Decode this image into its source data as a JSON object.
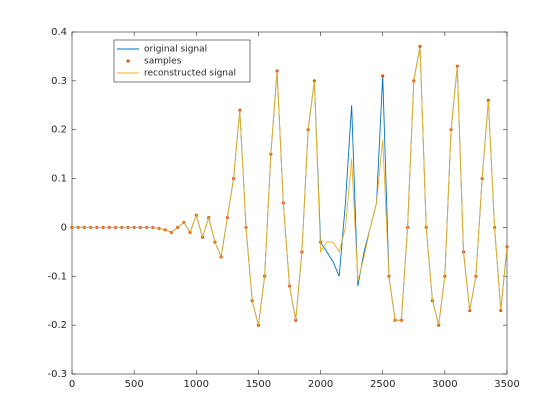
{
  "chart_data": {
    "type": "line",
    "x": [
      0,
      50,
      100,
      150,
      200,
      250,
      300,
      350,
      400,
      450,
      500,
      550,
      600,
      650,
      700,
      750,
      800,
      850,
      900,
      950,
      1000,
      1050,
      1100,
      1150,
      1200,
      1250,
      1300,
      1350,
      1400,
      1450,
      1500,
      1550,
      1600,
      1650,
      1700,
      1750,
      1800,
      1850,
      1900,
      1950,
      2000,
      2050,
      2100,
      2150,
      2200,
      2250,
      2300,
      2350,
      2400,
      2450,
      2500,
      2550,
      2600,
      2650,
      2700,
      2750,
      2800,
      2850,
      2900,
      2950,
      3000,
      3050,
      3100,
      3150,
      3200,
      3250,
      3300,
      3350,
      3400,
      3450,
      3500
    ],
    "series": [
      {
        "name": "original signal",
        "color": "#0072bd",
        "style": "line",
        "values": [
          0,
          0,
          0,
          0,
          0,
          0,
          0,
          0,
          0,
          0,
          0,
          0,
          0,
          0,
          -0.002,
          -0.005,
          -0.01,
          0.0,
          0.01,
          -0.01,
          0.025,
          -0.02,
          0.02,
          -0.03,
          -0.06,
          0.02,
          0.1,
          0.24,
          0.0,
          -0.15,
          -0.2,
          -0.1,
          0.15,
          0.32,
          0.05,
          -0.12,
          -0.19,
          -0.05,
          0.2,
          0.3,
          -0.03,
          -0.05,
          -0.07,
          -0.1,
          0.05,
          0.25,
          -0.12,
          -0.05,
          0.0,
          0.05,
          0.31,
          -0.1,
          -0.19,
          -0.19,
          0.0,
          0.3,
          0.37,
          0.0,
          -0.15,
          -0.2,
          -0.1,
          0.2,
          0.33,
          -0.05,
          -0.17,
          -0.1,
          0.1,
          0.26,
          0.0,
          -0.17,
          -0.04
        ]
      },
      {
        "name": "samples",
        "color": "#d95319",
        "style": "markers",
        "values": [
          0,
          0,
          0,
          0,
          0,
          0,
          0,
          0,
          0,
          0,
          0,
          0,
          0,
          0,
          -0.002,
          -0.005,
          -0.01,
          0.0,
          0.01,
          -0.01,
          0.025,
          -0.02,
          0.02,
          -0.03,
          -0.06,
          0.02,
          0.1,
          0.24,
          0.0,
          -0.15,
          -0.2,
          -0.1,
          0.15,
          0.32,
          0.05,
          -0.12,
          -0.19,
          -0.05,
          0.2,
          0.3,
          -0.03,
          null,
          null,
          null,
          null,
          null,
          null,
          null,
          null,
          null,
          0.31,
          -0.1,
          -0.19,
          -0.19,
          0.0,
          0.3,
          0.37,
          0.0,
          -0.15,
          -0.2,
          -0.1,
          0.2,
          0.33,
          -0.05,
          -0.17,
          -0.1,
          0.1,
          0.26,
          0.0,
          -0.17,
          -0.04
        ]
      },
      {
        "name": "reconstructed signal",
        "color": "#edb120",
        "style": "line",
        "values": [
          0,
          0,
          0,
          0,
          0,
          0,
          0,
          0,
          0,
          0,
          0,
          0,
          0,
          0,
          -0.002,
          -0.005,
          -0.01,
          0.0,
          0.01,
          -0.01,
          0.025,
          -0.02,
          0.02,
          -0.03,
          -0.06,
          0.02,
          0.1,
          0.24,
          0.0,
          -0.15,
          -0.2,
          -0.1,
          0.15,
          0.32,
          0.05,
          -0.12,
          -0.19,
          -0.05,
          0.2,
          0.3,
          -0.05,
          -0.03,
          -0.03,
          -0.05,
          0.0,
          0.14,
          -0.11,
          -0.06,
          0.0,
          0.05,
          0.18,
          -0.1,
          -0.19,
          -0.19,
          0.0,
          0.3,
          0.37,
          0.0,
          -0.15,
          -0.2,
          -0.1,
          0.2,
          0.33,
          -0.05,
          -0.17,
          -0.1,
          0.1,
          0.26,
          0.0,
          -0.17,
          -0.04
        ]
      }
    ],
    "xlim": [
      0,
      3500
    ],
    "xticks": [
      0,
      500,
      1000,
      1500,
      2000,
      2500,
      3000,
      3500
    ],
    "ylim": [
      -0.3,
      0.4
    ],
    "yticks": [
      -0.3,
      -0.2,
      -0.1,
      0,
      0.1,
      0.2,
      0.3,
      0.4
    ],
    "grid": false,
    "legend": "top-left"
  }
}
